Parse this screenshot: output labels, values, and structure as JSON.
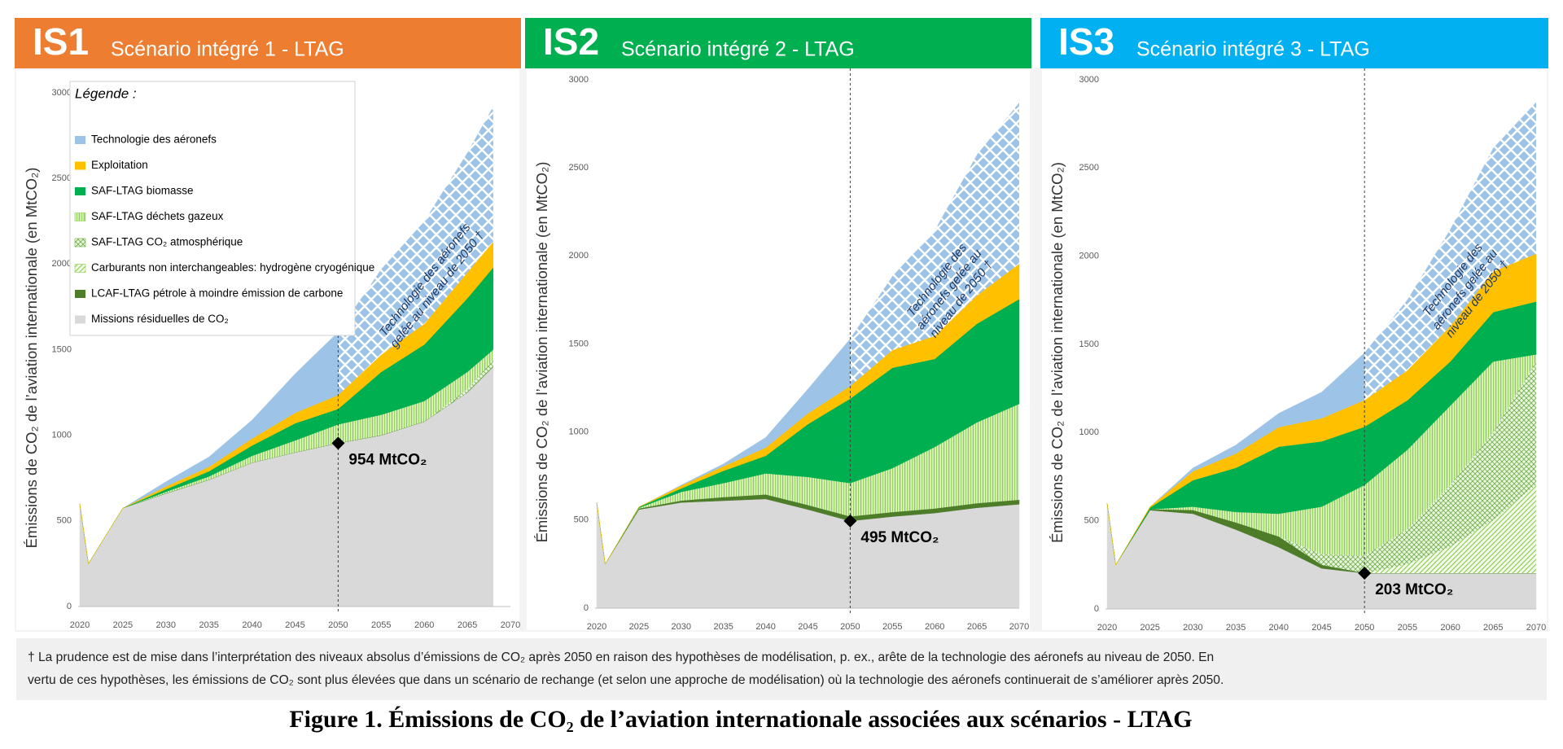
{
  "chart_data": [
    {
      "type": "area",
      "stacked": true,
      "code": "IS1",
      "title": "Scénario intégré 1 - LTAG",
      "header_color": "#ed7d31",
      "ylabel": "Émissions de CO₂ de l’aviation internationale (en MtCO₂)",
      "x": [
        2020,
        2021,
        2025,
        2030,
        2035,
        2040,
        2045,
        2050,
        2055,
        2060,
        2065,
        2068
      ],
      "xlim": [
        2020,
        2070
      ],
      "xticks": [
        2020,
        2025,
        2030,
        2035,
        2040,
        2045,
        2050,
        2055,
        2060,
        2065,
        2070
      ],
      "ylim": [
        0,
        3000
      ],
      "yticks": [
        0,
        500,
        1000,
        1500,
        2000,
        2500,
        3000
      ],
      "legend_title": "Légende :",
      "series": [
        {
          "name": "Missions résiduelles de CO₂",
          "color": "#d9d9d9",
          "pattern": "solid",
          "values": [
            600,
            250,
            575,
            660,
            740,
            840,
            900,
            954,
            1000,
            1080,
            1250,
            1400
          ]
        },
        {
          "name": "LCAF-LTAG pétrole à moindre émission de carbone",
          "color": "#4e7d2a",
          "pattern": "solid",
          "values": [
            0,
            0,
            0,
            0,
            0,
            0,
            0,
            0,
            0,
            0,
            0,
            0
          ]
        },
        {
          "name": "Carburants non interchangeables: hydrogène cryogénique",
          "color": "#92d050",
          "pattern": "diagonal",
          "values": [
            0,
            0,
            0,
            0,
            0,
            0,
            0,
            0,
            0,
            0,
            0,
            0
          ]
        },
        {
          "name": "SAF-LTAG CO₂ atmosphérique",
          "color": "#70ad47",
          "pattern": "hatch",
          "values": [
            0,
            0,
            0,
            0,
            0,
            0,
            0,
            0,
            0,
            0,
            20,
            40
          ]
        },
        {
          "name": "SAF-LTAG déchets gazeux",
          "color": "#92d050",
          "pattern": "vertical",
          "values": [
            0,
            0,
            0,
            10,
            20,
            40,
            70,
            110,
            120,
            120,
            100,
            60
          ]
        },
        {
          "name": "SAF-LTAG biomasse",
          "color": "#00b050",
          "pattern": "solid",
          "values": [
            0,
            0,
            0,
            15,
            30,
            60,
            100,
            90,
            250,
            330,
            430,
            480
          ]
        },
        {
          "name": "Exploitation",
          "color": "#ffc000",
          "pattern": "solid",
          "values": [
            0,
            0,
            0,
            15,
            25,
            40,
            60,
            80,
            100,
            120,
            150,
            150
          ]
        },
        {
          "name": "Technologie des aéronefs",
          "color": "#9dc3e6",
          "pattern": "lattice-after-marker",
          "values": [
            0,
            0,
            0,
            30,
            60,
            110,
            230,
            370,
            500,
            600,
            700,
            790
          ]
        }
      ],
      "marker": {
        "x": 2050,
        "value": 954,
        "label": "954 MtCO₂"
      },
      "annotation": [
        "Technologie des aéronefs",
        "gelée au niveau de 2050 †"
      ]
    },
    {
      "type": "area",
      "stacked": true,
      "code": "IS2",
      "title": "Scénario intégré 2 - LTAG",
      "header_color": "#00b050",
      "ylabel": "Émissions de CO₂ de l’aviation internationale (en MtCO₂)",
      "x": [
        2020,
        2021,
        2025,
        2030,
        2035,
        2040,
        2045,
        2050,
        2055,
        2060,
        2065,
        2070
      ],
      "xlim": [
        2020,
        2070
      ],
      "xticks": [
        2020,
        2025,
        2030,
        2035,
        2040,
        2045,
        2050,
        2055,
        2060,
        2065,
        2070
      ],
      "ylim": [
        0,
        3000
      ],
      "yticks": [
        0,
        500,
        1000,
        1500,
        2000,
        2500,
        3000
      ],
      "series": [
        {
          "color": "#d9d9d9",
          "pattern": "solid",
          "values": [
            600,
            250,
            560,
            600,
            610,
            620,
            560,
            495,
            520,
            540,
            570,
            590
          ]
        },
        {
          "color": "#4e7d2a",
          "pattern": "solid",
          "values": [
            0,
            0,
            5,
            10,
            20,
            25,
            25,
            25,
            25,
            25,
            25,
            25
          ]
        },
        {
          "color": "#92d050",
          "pattern": "diagonal",
          "values": [
            0,
            0,
            0,
            0,
            0,
            0,
            0,
            0,
            0,
            0,
            0,
            0
          ]
        },
        {
          "color": "#70ad47",
          "pattern": "hatch",
          "values": [
            0,
            0,
            0,
            0,
            0,
            0,
            0,
            0,
            0,
            0,
            0,
            0
          ]
        },
        {
          "color": "#92d050",
          "pattern": "vertical",
          "values": [
            0,
            0,
            5,
            50,
            80,
            120,
            160,
            190,
            250,
            350,
            460,
            545
          ]
        },
        {
          "color": "#00b050",
          "pattern": "solid",
          "values": [
            0,
            0,
            5,
            20,
            70,
            100,
            300,
            480,
            570,
            500,
            560,
            595
          ]
        },
        {
          "color": "#ffc000",
          "pattern": "solid",
          "values": [
            0,
            0,
            0,
            15,
            25,
            45,
            60,
            70,
            100,
            130,
            160,
            200
          ]
        },
        {
          "color": "#9dc3e6",
          "pattern": "lattice-after-marker",
          "values": [
            0,
            0,
            0,
            5,
            15,
            60,
            140,
            270,
            420,
            600,
            800,
            915
          ]
        }
      ],
      "marker": {
        "x": 2050,
        "value": 495,
        "label": "495 MtCO₂"
      },
      "annotation": [
        "Technologie des",
        "aéronefs gelée au",
        "niveau de 2050 †"
      ]
    },
    {
      "type": "area",
      "stacked": true,
      "code": "IS3",
      "title": "Scénario intégré 3 - LTAG",
      "header_color": "#00b0f0",
      "ylabel": "Émissions de CO₂ de l’aviation internationale (en MtCO₂)",
      "x": [
        2020,
        2021,
        2025,
        2030,
        2035,
        2040,
        2045,
        2050,
        2055,
        2060,
        2065,
        2070
      ],
      "xlim": [
        2020,
        2070
      ],
      "xticks": [
        2020,
        2025,
        2030,
        2035,
        2040,
        2045,
        2050,
        2055,
        2060,
        2065,
        2070
      ],
      "ylim": [
        0,
        3000
      ],
      "yticks": [
        0,
        500,
        1000,
        1500,
        2000,
        2500,
        3000
      ],
      "series": [
        {
          "color": "#d9d9d9",
          "pattern": "solid",
          "values": [
            600,
            250,
            560,
            540,
            450,
            350,
            230,
            203,
            203,
            203,
            203,
            203
          ]
        },
        {
          "color": "#4e7d2a",
          "pattern": "solid",
          "values": [
            0,
            0,
            5,
            20,
            40,
            60,
            20,
            0,
            0,
            0,
            0,
            0
          ]
        },
        {
          "color": "#92d050",
          "pattern": "diagonal",
          "values": [
            0,
            0,
            0,
            0,
            0,
            0,
            0,
            0,
            50,
            150,
            300,
            500
          ]
        },
        {
          "color": "#70ad47",
          "pattern": "hatch",
          "values": [
            0,
            0,
            0,
            0,
            0,
            0,
            60,
            100,
            200,
            350,
            500,
            700
          ]
        },
        {
          "color": "#92d050",
          "pattern": "vertical",
          "values": [
            0,
            0,
            0,
            20,
            60,
            130,
            270,
            400,
            450,
            450,
            400,
            40
          ]
        },
        {
          "color": "#00b050",
          "pattern": "solid",
          "values": [
            0,
            0,
            10,
            150,
            250,
            380,
            370,
            330,
            280,
            250,
            280,
            300
          ]
        },
        {
          "color": "#ffc000",
          "pattern": "solid",
          "values": [
            0,
            0,
            5,
            50,
            80,
            110,
            130,
            150,
            170,
            200,
            230,
            270
          ]
        },
        {
          "color": "#9dc3e6",
          "pattern": "lattice-after-marker",
          "values": [
            0,
            0,
            0,
            20,
            50,
            80,
            150,
            270,
            400,
            550,
            700,
            860
          ]
        }
      ],
      "marker": {
        "x": 2050,
        "value": 203,
        "label": "203 MtCO₂"
      },
      "annotation": [
        "Technologie des",
        "aéronefs gelée au",
        "niveau de 2050 †"
      ]
    }
  ],
  "footnote": [
    "† La prudence est de mise dans l’interprétation des niveaux absolus d’émissions de CO₂ après 2050 en raison des hypothèses de modélisation, p. ex., arête de la technologie des aéronefs au niveau de 2050. En",
    "vertu de ces hypothèses, les émissions de CO₂ sont plus élevées que dans un scénario de rechange (et selon une approche de modélisation) où la technologie des aéronefs continuerait de s’améliorer après 2050."
  ],
  "figure_title": "Figure 1. Émissions de CO₂ de l’aviation internationale associées aux scénarios - LTAG"
}
